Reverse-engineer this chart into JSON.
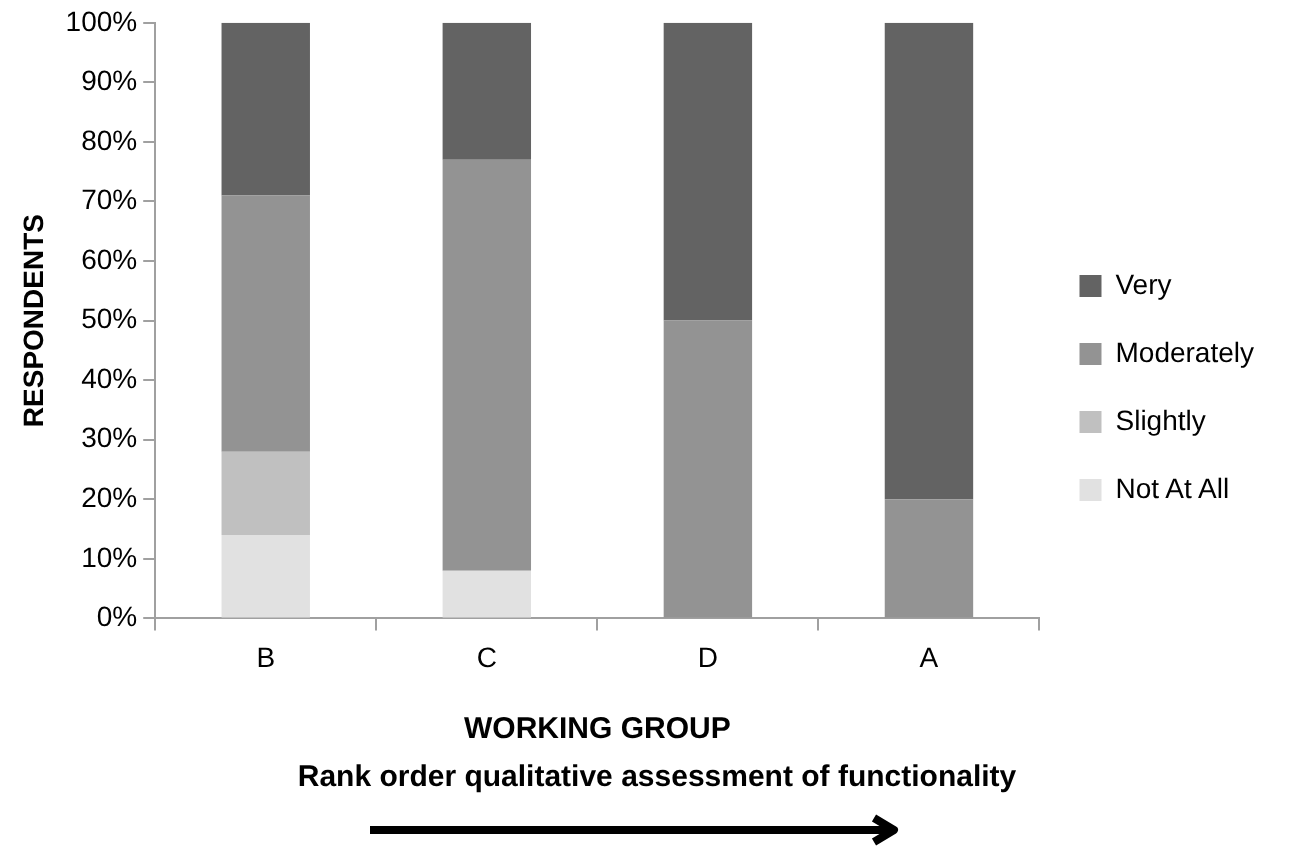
{
  "chart_data": {
    "type": "bar",
    "stacked": true,
    "xlabel": "WORKING GROUP",
    "ylabel": "RESPONDENTS",
    "annotations": [
      "Rank order qualitative assessment of functionality"
    ],
    "categories": [
      "B",
      "C",
      "D",
      "A"
    ],
    "series": [
      {
        "name": "Not At All",
        "color": "#e1e1e1",
        "values": [
          14,
          8,
          0,
          0
        ]
      },
      {
        "name": "Slightly",
        "color": "#c0c0c0",
        "values": [
          14,
          0,
          0,
          0
        ]
      },
      {
        "name": "Moderately",
        "color": "#939393",
        "values": [
          43,
          69,
          50,
          20
        ]
      },
      {
        "name": "Very",
        "color": "#636363",
        "values": [
          29,
          23,
          50,
          80
        ]
      }
    ],
    "ylim": [
      0,
      100
    ],
    "yticks": [
      {
        "value": 0,
        "label": "0%"
      },
      {
        "value": 10,
        "label": "10%"
      },
      {
        "value": 20,
        "label": "20%"
      },
      {
        "value": 30,
        "label": "30%"
      },
      {
        "value": 40,
        "label": "40%"
      },
      {
        "value": 50,
        "label": "50%"
      },
      {
        "value": 60,
        "label": "60%"
      },
      {
        "value": 70,
        "label": "70%"
      },
      {
        "value": 80,
        "label": "80%"
      },
      {
        "value": 90,
        "label": "90%"
      },
      {
        "value": 100,
        "label": "100%"
      }
    ],
    "grid": false,
    "legend": "right"
  }
}
